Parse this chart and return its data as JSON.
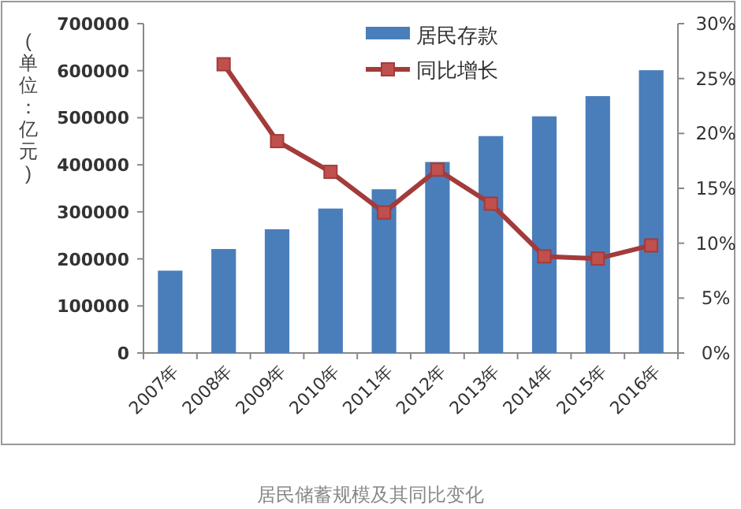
{
  "chart_data": {
    "type": "bar",
    "ylabel": "(单位：亿元)",
    "categories": [
      "2007年",
      "2008年",
      "2009年",
      "2010年",
      "2011年",
      "2012年",
      "2013年",
      "2014年",
      "2015年",
      "2016年"
    ],
    "series": [
      {
        "name": "居民存款",
        "color": "#4a7ebb",
        "values": [
          175000,
          221000,
          263000,
          307000,
          348000,
          406000,
          461000,
          503000,
          546000,
          601000
        ]
      },
      {
        "name": "同比增长",
        "type": "line",
        "axis": "y2",
        "color": "#a33b3b",
        "values": [
          null,
          26.3,
          19.3,
          16.5,
          12.8,
          16.7,
          13.6,
          8.8,
          8.6,
          9.8
        ]
      }
    ],
    "ylim": [
      0,
      700000
    ],
    "yticks": [
      0,
      100000,
      200000,
      300000,
      400000,
      500000,
      600000,
      700000
    ],
    "y2lim": [
      0,
      30
    ],
    "y2ticks": [
      {
        "value": 0,
        "label": "0%"
      },
      {
        "value": 5,
        "label": "5%"
      },
      {
        "value": 10,
        "label": "10%"
      },
      {
        "value": 15,
        "label": "15%"
      },
      {
        "value": 20,
        "label": "20%"
      },
      {
        "value": 25,
        "label": "25%"
      },
      {
        "value": 30,
        "label": "30%"
      }
    ],
    "marker": "square",
    "legend": "top right",
    "grid": false,
    "annotations": [
      "居民储蓄规模及其同比变化"
    ]
  }
}
